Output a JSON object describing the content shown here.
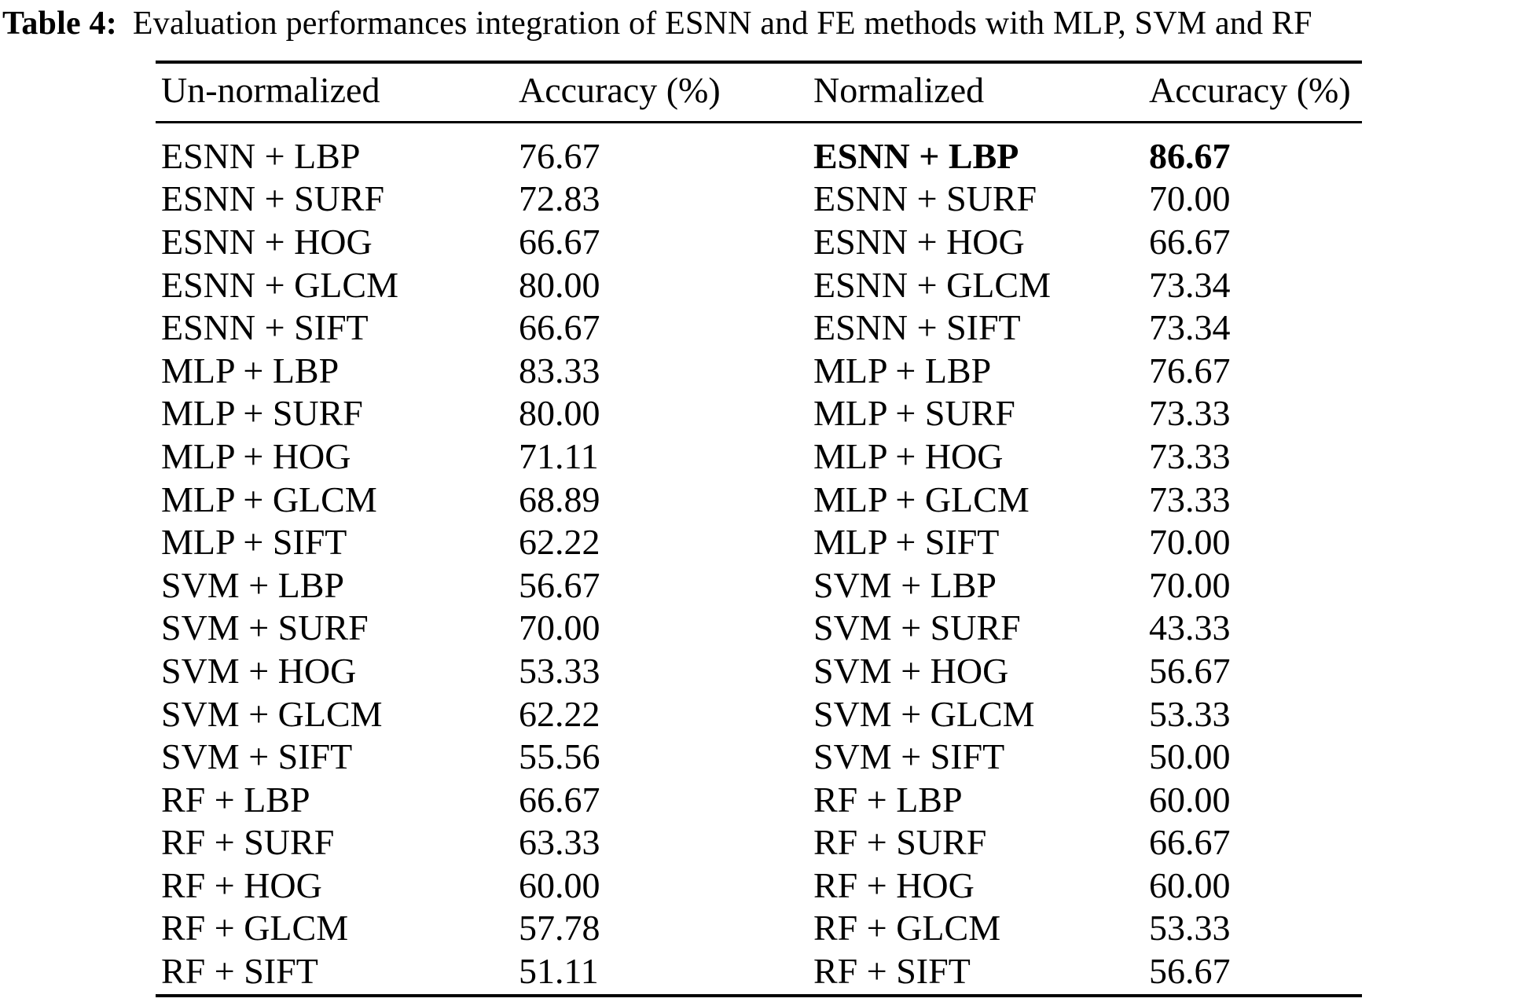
{
  "caption": {
    "label": "Table 4:",
    "text": "Evaluation performances integration of ESNN and FE methods with MLP, SVM and RF"
  },
  "table": {
    "headers": [
      "Un-normalized",
      "Accuracy (%)",
      "Normalized",
      "Accuracy (%)"
    ],
    "rows": [
      {
        "un_method": "ESNN + LBP",
        "un_accuracy": "76.67",
        "norm_method": "ESNN + LBP",
        "norm_accuracy": "86.67",
        "highlight": true
      },
      {
        "un_method": "ESNN + SURF",
        "un_accuracy": "72.83",
        "norm_method": "ESNN + SURF",
        "norm_accuracy": "70.00",
        "highlight": false
      },
      {
        "un_method": "ESNN + HOG",
        "un_accuracy": "66.67",
        "norm_method": "ESNN + HOG",
        "norm_accuracy": "66.67",
        "highlight": false
      },
      {
        "un_method": "ESNN + GLCM",
        "un_accuracy": "80.00",
        "norm_method": "ESNN + GLCM",
        "norm_accuracy": "73.34",
        "highlight": false
      },
      {
        "un_method": "ESNN + SIFT",
        "un_accuracy": "66.67",
        "norm_method": "ESNN + SIFT",
        "norm_accuracy": "73.34",
        "highlight": false
      },
      {
        "un_method": "MLP + LBP",
        "un_accuracy": "83.33",
        "norm_method": "MLP + LBP",
        "norm_accuracy": "76.67",
        "highlight": false
      },
      {
        "un_method": "MLP + SURF",
        "un_accuracy": "80.00",
        "norm_method": "MLP + SURF",
        "norm_accuracy": "73.33",
        "highlight": false
      },
      {
        "un_method": "MLP + HOG",
        "un_accuracy": "71.11",
        "norm_method": "MLP + HOG",
        "norm_accuracy": "73.33",
        "highlight": false
      },
      {
        "un_method": "MLP + GLCM",
        "un_accuracy": "68.89",
        "norm_method": "MLP + GLCM",
        "norm_accuracy": "73.33",
        "highlight": false
      },
      {
        "un_method": "MLP + SIFT",
        "un_accuracy": "62.22",
        "norm_method": "MLP + SIFT",
        "norm_accuracy": "70.00",
        "highlight": false
      },
      {
        "un_method": "SVM + LBP",
        "un_accuracy": "56.67",
        "norm_method": "SVM + LBP",
        "norm_accuracy": "70.00",
        "highlight": false
      },
      {
        "un_method": "SVM + SURF",
        "un_accuracy": "70.00",
        "norm_method": "SVM + SURF",
        "norm_accuracy": "43.33",
        "highlight": false
      },
      {
        "un_method": "SVM + HOG",
        "un_accuracy": "53.33",
        "norm_method": "SVM + HOG",
        "norm_accuracy": "56.67",
        "highlight": false
      },
      {
        "un_method": "SVM + GLCM",
        "un_accuracy": "62.22",
        "norm_method": "SVM + GLCM",
        "norm_accuracy": "53.33",
        "highlight": false
      },
      {
        "un_method": "SVM + SIFT",
        "un_accuracy": "55.56",
        "norm_method": "SVM + SIFT",
        "norm_accuracy": "50.00",
        "highlight": false
      },
      {
        "un_method": "RF + LBP",
        "un_accuracy": "66.67",
        "norm_method": "RF + LBP",
        "norm_accuracy": "60.00",
        "highlight": false
      },
      {
        "un_method": "RF + SURF",
        "un_accuracy": "63.33",
        "norm_method": "RF + SURF",
        "norm_accuracy": "66.67",
        "highlight": false
      },
      {
        "un_method": "RF + HOG",
        "un_accuracy": "60.00",
        "norm_method": "RF + HOG",
        "norm_accuracy": "60.00",
        "highlight": false
      },
      {
        "un_method": "RF + GLCM",
        "un_accuracy": "57.78",
        "norm_method": "RF + GLCM",
        "norm_accuracy": "53.33",
        "highlight": false
      },
      {
        "un_method": "RF + SIFT",
        "un_accuracy": "51.11",
        "norm_method": "RF + SIFT",
        "norm_accuracy": "56.67",
        "highlight": false
      }
    ]
  },
  "colors": {
    "text": "#000000",
    "background": "#ffffff"
  }
}
